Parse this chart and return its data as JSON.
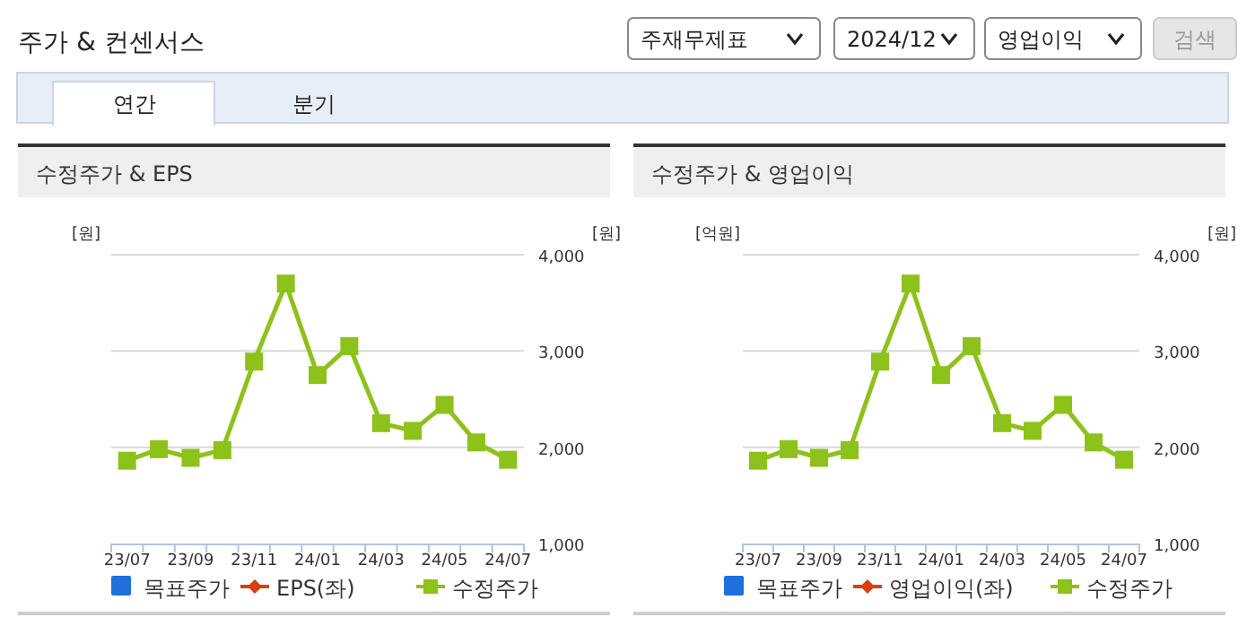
{
  "chart_data": [
    {
      "type": "line",
      "title": "수정주가 & EPS",
      "ylabel": "[원]",
      "y2label": "[원]",
      "annotations": [
        "주가 & 컨센서스",
        "주재무제표",
        "2024/12",
        "영업이익",
        "검색",
        "연간",
        "분기"
      ],
      "categories": [
        "23/07",
        null,
        "23/09",
        null,
        "23/11",
        null,
        "24/01",
        null,
        "24/03",
        null,
        "24/05",
        null,
        "24/07"
      ],
      "y2lim": [
        1000,
        4000
      ],
      "y2ticks": [
        {
          "value": 1000,
          "label": "1,000"
        },
        {
          "value": 2000,
          "label": "2,000"
        },
        {
          "value": 3000,
          "label": "3,000"
        },
        {
          "value": 4000,
          "label": "4,000"
        }
      ],
      "grid": "y",
      "legend": "bottom",
      "marker": "square",
      "line_style": "solid",
      "series": [
        {
          "name": "목표주가",
          "type": "bar",
          "color": "#1f6fdc",
          "values": [
            null,
            null,
            null,
            null,
            null,
            null,
            null,
            null,
            null,
            null,
            null,
            null,
            null
          ]
        },
        {
          "name": "EPS(좌)",
          "marker": "diamond",
          "color": "#d9400f",
          "values": [
            null,
            null,
            null,
            null,
            null,
            null,
            null,
            null,
            null,
            null,
            null,
            null,
            null
          ]
        },
        {
          "name": "수정주가",
          "axis": "y2",
          "color": "#8cc21a",
          "values": [
            1860,
            1980,
            1890,
            1970,
            2890,
            3700,
            2750,
            3050,
            2250,
            2170,
            2440,
            2050,
            1870
          ]
        }
      ]
    },
    {
      "type": "line",
      "title": "수정주가 & 영업이익",
      "ylabel": "[억원]",
      "y2label": "[원]",
      "categories": [
        "23/07",
        null,
        "23/09",
        null,
        "23/11",
        null,
        "24/01",
        null,
        "24/03",
        null,
        "24/05",
        null,
        "24/07"
      ],
      "y2lim": [
        1000,
        4000
      ],
      "y2ticks": [
        {
          "value": 1000,
          "label": "1,000"
        },
        {
          "value": 2000,
          "label": "2,000"
        },
        {
          "value": 3000,
          "label": "3,000"
        },
        {
          "value": 4000,
          "label": "4,000"
        }
      ],
      "grid": "y",
      "legend": "bottom",
      "marker": "square",
      "line_style": "solid",
      "series": [
        {
          "name": "목표주가",
          "type": "bar",
          "color": "#1f6fdc",
          "values": [
            null,
            null,
            null,
            null,
            null,
            null,
            null,
            null,
            null,
            null,
            null,
            null,
            null
          ]
        },
        {
          "name": "영업이익(좌)",
          "marker": "diamond",
          "color": "#d9400f",
          "values": [
            null,
            null,
            null,
            null,
            null,
            null,
            null,
            null,
            null,
            null,
            null,
            null,
            null
          ]
        },
        {
          "name": "수정주가",
          "axis": "y2",
          "color": "#8cc21a",
          "values": [
            1860,
            1980,
            1890,
            1970,
            2890,
            3700,
            2750,
            3050,
            2250,
            2170,
            2440,
            2050,
            1870
          ]
        }
      ]
    }
  ]
}
